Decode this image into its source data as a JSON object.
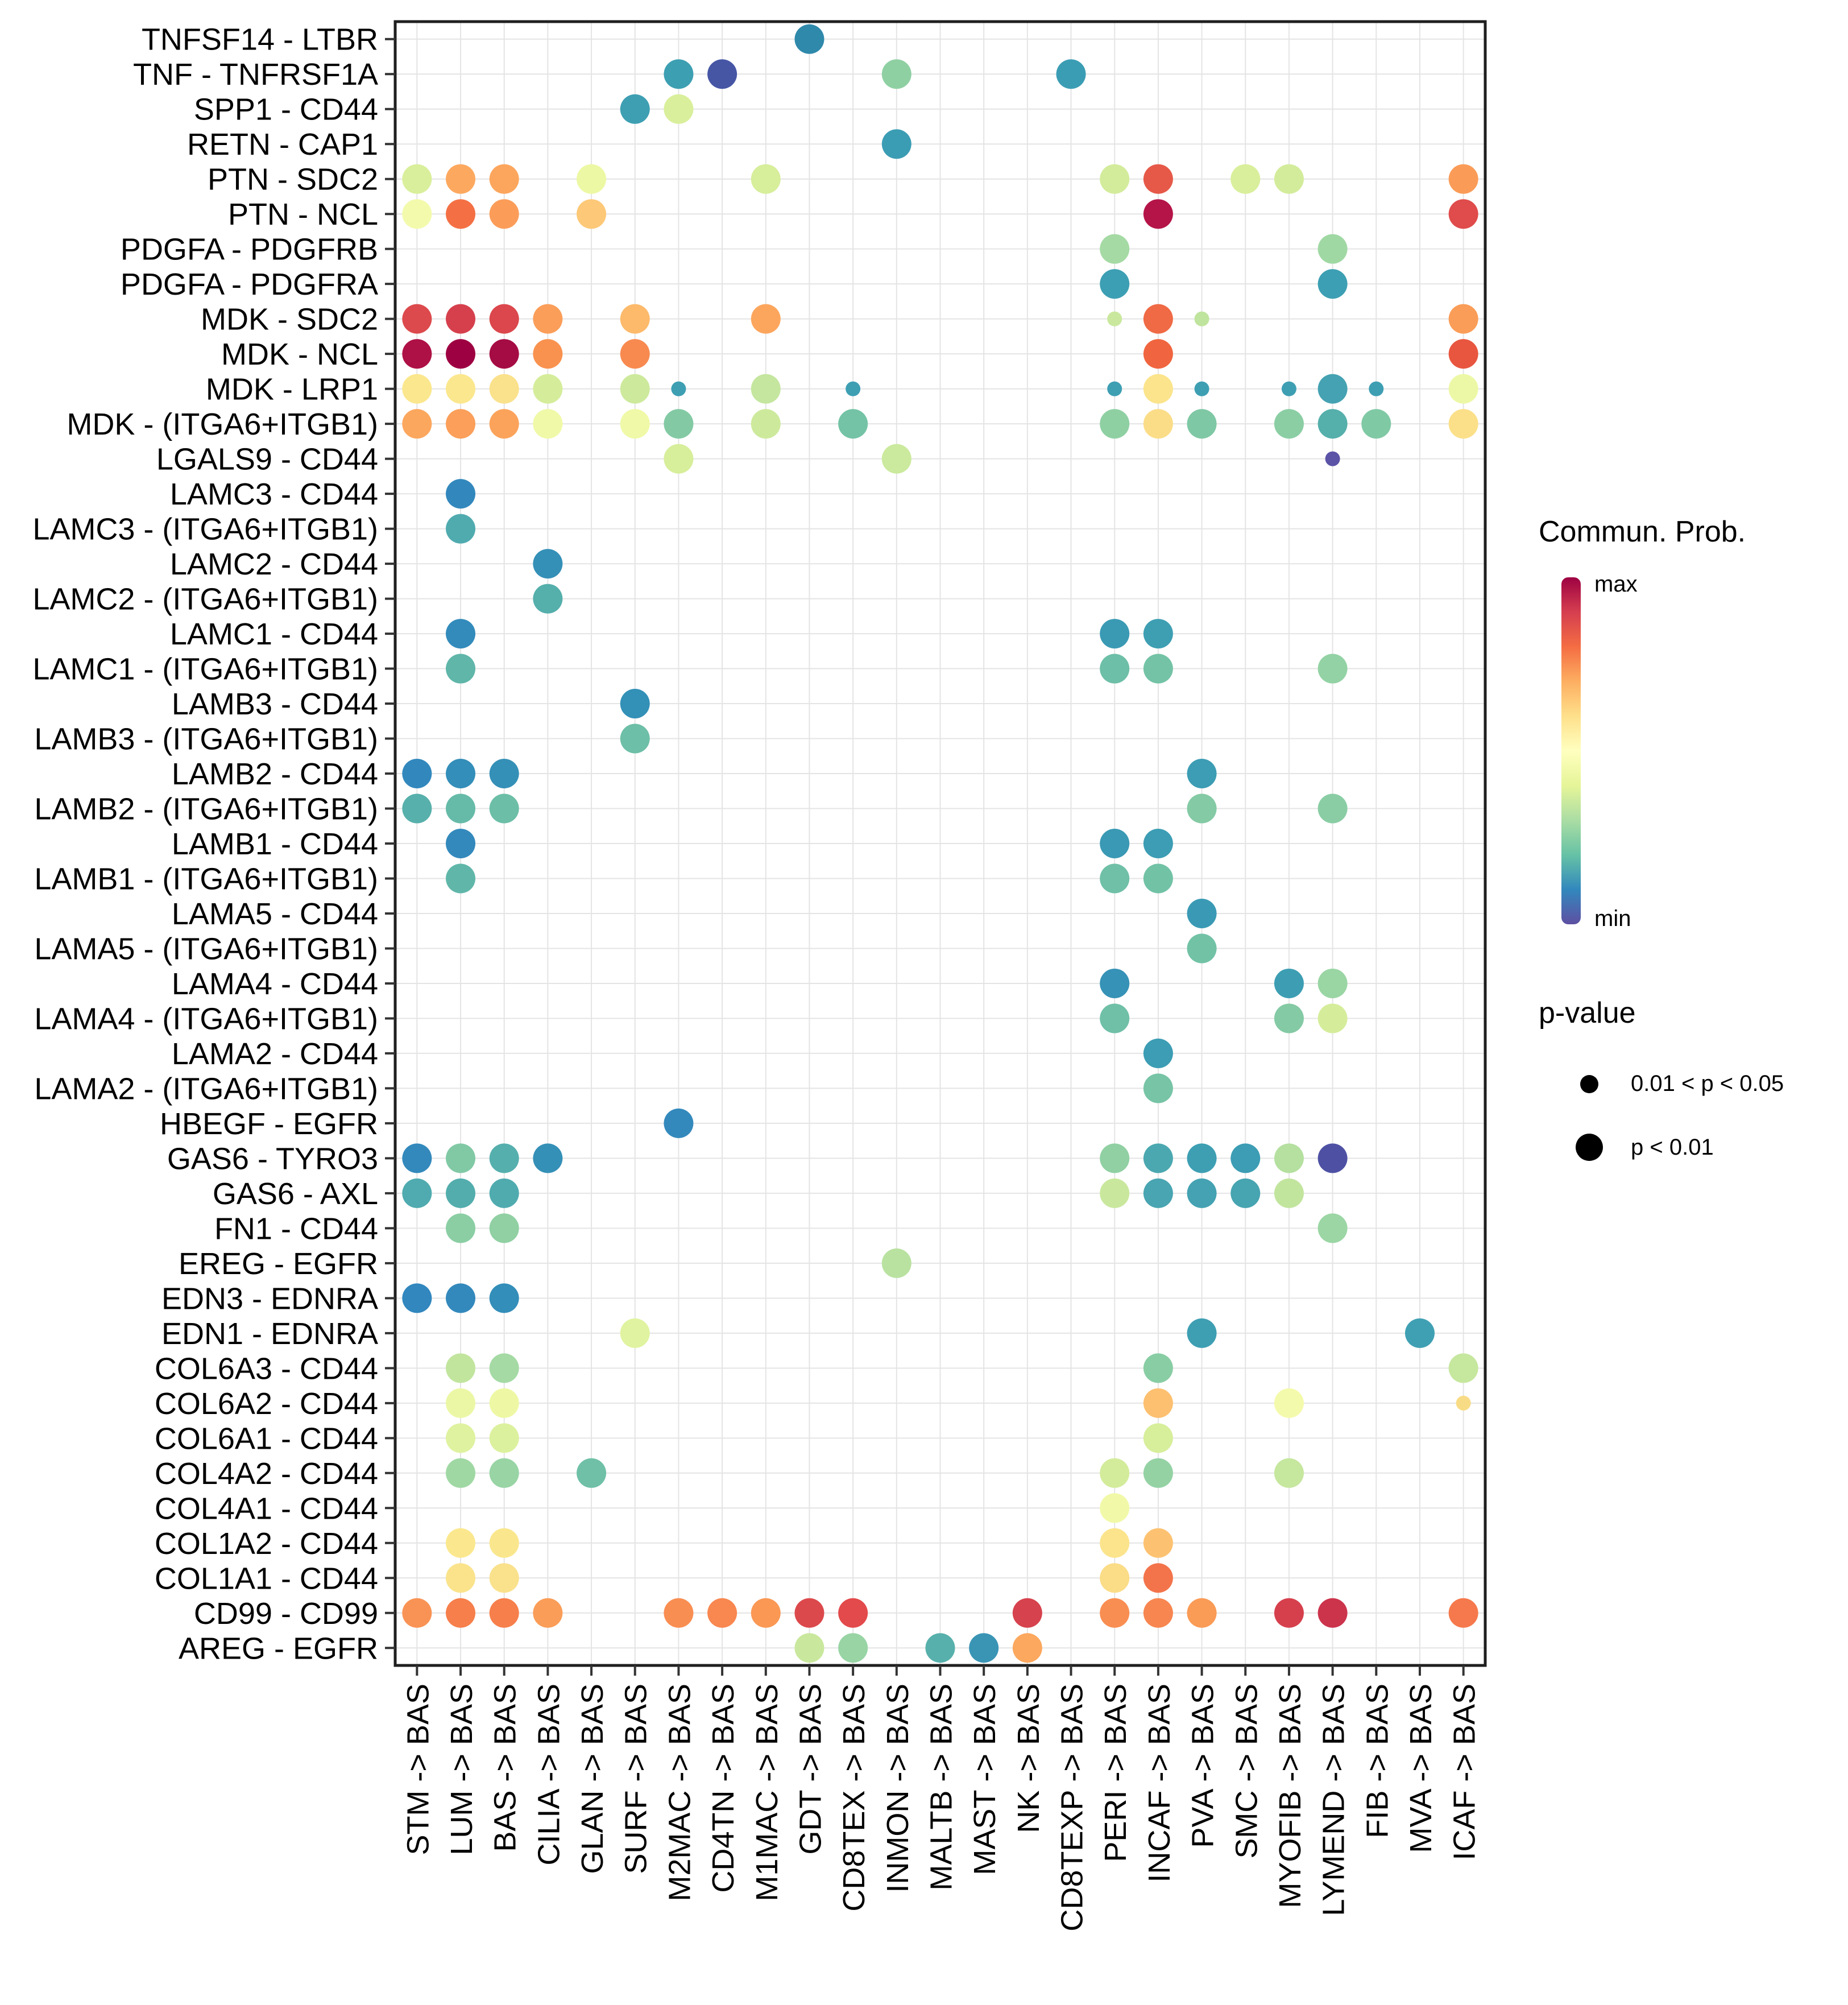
{
  "legend": {
    "colorbar_title": "Commun. Prob.",
    "max_label": "max",
    "min_label": "min",
    "pvalue_title": "p-value",
    "pvalue_items": [
      {
        "label": "0.01 < p < 0.05",
        "size": "small"
      },
      {
        "label": "p < 0.01",
        "size": "large"
      }
    ]
  },
  "chart_data": {
    "type": "scatter",
    "subtype": "ligand-receptor-bubble-dotplot",
    "title": "",
    "xlabel": "",
    "ylabel": "",
    "grid": true,
    "legend_position": "right",
    "color_scale": {
      "label": "Commun. Prob.",
      "max_label": "max",
      "min_label": "min",
      "stops_top_to_bottom": [
        "#9E0142",
        "#D53E4F",
        "#F46D43",
        "#FDAE61",
        "#FEE08B",
        "#FFFFBF",
        "#E6F598",
        "#ABDDA4",
        "#66C2A5",
        "#3288BD",
        "#5E4FA2"
      ]
    },
    "size_scale": {
      "label": "p-value",
      "small": "0.01 < p < 0.05",
      "large": "p < 0.01"
    },
    "rows": [
      "TNFSF14 - LTBR",
      "TNF - TNFRSF1A",
      "SPP1 - CD44",
      "RETN - CAP1",
      "PTN - SDC2",
      "PTN - NCL",
      "PDGFA - PDGFRB",
      "PDGFA - PDGFRA",
      "MDK - SDC2",
      "MDK - NCL",
      "MDK - LRP1",
      "MDK - (ITGA6+ITGB1)",
      "LGALS9 - CD44",
      "LAMC3 - CD44",
      "LAMC3 - (ITGA6+ITGB1)",
      "LAMC2 - CD44",
      "LAMC2 - (ITGA6+ITGB1)",
      "LAMC1 - CD44",
      "LAMC1 - (ITGA6+ITGB1)",
      "LAMB3 - CD44",
      "LAMB3 - (ITGA6+ITGB1)",
      "LAMB2 - CD44",
      "LAMB2 - (ITGA6+ITGB1)",
      "LAMB1 - CD44",
      "LAMB1 - (ITGA6+ITGB1)",
      "LAMA5 - CD44",
      "LAMA5 - (ITGA6+ITGB1)",
      "LAMA4 - CD44",
      "LAMA4 - (ITGA6+ITGB1)",
      "LAMA2 - CD44",
      "LAMA2 - (ITGA6+ITGB1)",
      "HBEGF - EGFR",
      "GAS6 - TYRO3",
      "GAS6 - AXL",
      "FN1 - CD44",
      "EREG - EGFR",
      "EDN3 - EDNRA",
      "EDN1 - EDNRA",
      "COL6A3 - CD44",
      "COL6A2 - CD44",
      "COL6A1 - CD44",
      "COL4A2 - CD44",
      "COL4A1 - CD44",
      "COL1A2 - CD44",
      "COL1A1 - CD44",
      "CD99 - CD99",
      "AREG - EGFR"
    ],
    "columns": [
      "STM -> BAS",
      "LUM -> BAS",
      "BAS -> BAS",
      "CILIA -> BAS",
      "GLAN -> BAS",
      "SURF -> BAS",
      "M2MAC -> BAS",
      "CD4TN -> BAS",
      "M1MAC -> BAS",
      "GDT -> BAS",
      "CD8TEX -> BAS",
      "INMON -> BAS",
      "MALTB -> BAS",
      "MAST -> BAS",
      "NK -> BAS",
      "CD8TEXP -> BAS",
      "PERI -> BAS",
      "INCAF -> BAS",
      "PVA -> BAS",
      "SMC -> BAS",
      "MYOFIB -> BAS",
      "LYMEND -> BAS",
      "FIB -> BAS",
      "MVA -> BAS",
      "ICAF -> BAS"
    ],
    "dot_format": [
      "row_index",
      "col_index",
      "color",
      "size(l=p<0.01, s=0.01<p<0.05)"
    ],
    "dots": [
      [
        0,
        9,
        "#2F89AB",
        "l"
      ],
      [
        1,
        6,
        "#3D9FB2",
        "l"
      ],
      [
        1,
        7,
        "#4656A5",
        "l"
      ],
      [
        1,
        11,
        "#8FD0A3",
        "l"
      ],
      [
        1,
        15,
        "#3B9DB4",
        "l"
      ],
      [
        2,
        5,
        "#3E9FB3",
        "l"
      ],
      [
        2,
        6,
        "#D9EF9B",
        "l"
      ],
      [
        3,
        11,
        "#3B9DB4",
        "l"
      ],
      [
        4,
        0,
        "#D9EF9B",
        "l"
      ],
      [
        4,
        1,
        "#FCA95F",
        "l"
      ],
      [
        4,
        2,
        "#FCA65D",
        "l"
      ],
      [
        4,
        4,
        "#EDF8A4",
        "l"
      ],
      [
        4,
        8,
        "#D7EE9B",
        "l"
      ],
      [
        4,
        16,
        "#D3EC9B",
        "l"
      ],
      [
        4,
        17,
        "#E65948",
        "l"
      ],
      [
        4,
        19,
        "#D9EF9B",
        "l"
      ],
      [
        4,
        20,
        "#D3EC9B",
        "l"
      ],
      [
        4,
        24,
        "#FA9C58",
        "l"
      ],
      [
        5,
        0,
        "#F3FAAC",
        "l"
      ],
      [
        5,
        1,
        "#F47044",
        "l"
      ],
      [
        5,
        2,
        "#FB9D59",
        "l"
      ],
      [
        5,
        4,
        "#FDC877",
        "l"
      ],
      [
        5,
        17,
        "#B51448",
        "l"
      ],
      [
        5,
        24,
        "#E04B4B",
        "l"
      ],
      [
        6,
        16,
        "#A5DAA4",
        "l"
      ],
      [
        6,
        21,
        "#A0D8A4",
        "l"
      ],
      [
        7,
        16,
        "#3D9FB3",
        "l"
      ],
      [
        7,
        21,
        "#3D9FB3",
        "l"
      ],
      [
        8,
        0,
        "#DC4A4D",
        "l"
      ],
      [
        8,
        1,
        "#D6404D",
        "l"
      ],
      [
        8,
        2,
        "#DB474C",
        "l"
      ],
      [
        8,
        3,
        "#FB9E59",
        "l"
      ],
      [
        8,
        5,
        "#FDBA6B",
        "l"
      ],
      [
        8,
        8,
        "#FCA65D",
        "l"
      ],
      [
        8,
        16,
        "#C9E89D",
        "s"
      ],
      [
        8,
        17,
        "#EF6A45",
        "l"
      ],
      [
        8,
        18,
        "#BFE49D",
        "s"
      ],
      [
        8,
        24,
        "#FA9D58",
        "l"
      ],
      [
        9,
        0,
        "#AE1145",
        "l"
      ],
      [
        9,
        1,
        "#9E0142",
        "l"
      ],
      [
        9,
        2,
        "#A50C44",
        "l"
      ],
      [
        9,
        3,
        "#F9924F",
        "l"
      ],
      [
        9,
        5,
        "#F88A50",
        "l"
      ],
      [
        9,
        17,
        "#F0653F",
        "l"
      ],
      [
        9,
        24,
        "#E8563F",
        "l"
      ],
      [
        10,
        0,
        "#FBE78D",
        "l"
      ],
      [
        10,
        1,
        "#FBE78D",
        "l"
      ],
      [
        10,
        2,
        "#FAE18B",
        "l"
      ],
      [
        10,
        3,
        "#D5ED9B",
        "l"
      ],
      [
        10,
        5,
        "#CDEA9C",
        "l"
      ],
      [
        10,
        6,
        "#3E9FB3",
        "s"
      ],
      [
        10,
        8,
        "#C4E69E",
        "l"
      ],
      [
        10,
        10,
        "#3E9FB3",
        "s"
      ],
      [
        10,
        16,
        "#3E9FB3",
        "s"
      ],
      [
        10,
        17,
        "#FBE48C",
        "l"
      ],
      [
        10,
        18,
        "#3E9FB3",
        "s"
      ],
      [
        10,
        20,
        "#3E9FB3",
        "s"
      ],
      [
        10,
        21,
        "#45A2B2",
        "l"
      ],
      [
        10,
        22,
        "#3E9FB3",
        "s"
      ],
      [
        10,
        24,
        "#EDF8A6",
        "l"
      ],
      [
        11,
        0,
        "#FCA75E",
        "l"
      ],
      [
        11,
        1,
        "#FB9F5A",
        "l"
      ],
      [
        11,
        2,
        "#FBA35B",
        "l"
      ],
      [
        11,
        3,
        "#F0F9A7",
        "l"
      ],
      [
        11,
        5,
        "#F0F9A7",
        "l"
      ],
      [
        11,
        6,
        "#83CAA4",
        "l"
      ],
      [
        11,
        8,
        "#CDEA9C",
        "l"
      ],
      [
        11,
        10,
        "#74C3A6",
        "l"
      ],
      [
        11,
        16,
        "#8FD0A3",
        "l"
      ],
      [
        11,
        17,
        "#FBDD88",
        "l"
      ],
      [
        11,
        18,
        "#7FC8A5",
        "l"
      ],
      [
        11,
        20,
        "#8BCEA4",
        "l"
      ],
      [
        11,
        21,
        "#55AFAB",
        "l"
      ],
      [
        11,
        22,
        "#80C9A5",
        "l"
      ],
      [
        11,
        24,
        "#FBE089",
        "l"
      ],
      [
        12,
        6,
        "#D7EE9B",
        "l"
      ],
      [
        12,
        11,
        "#CBEA9D",
        "l"
      ],
      [
        12,
        21,
        "#5B53A6",
        "s"
      ],
      [
        13,
        1,
        "#3288BD",
        "l"
      ],
      [
        14,
        1,
        "#50ABAF",
        "l"
      ],
      [
        15,
        3,
        "#3590B7",
        "l"
      ],
      [
        16,
        3,
        "#55AFAB",
        "l"
      ],
      [
        17,
        1,
        "#338BBB",
        "l"
      ],
      [
        17,
        16,
        "#3A9AB4",
        "l"
      ],
      [
        17,
        17,
        "#3E9FB3",
        "l"
      ],
      [
        18,
        1,
        "#5FB6A9",
        "l"
      ],
      [
        18,
        16,
        "#6DBFA7",
        "l"
      ],
      [
        18,
        17,
        "#74C3A6",
        "l"
      ],
      [
        18,
        21,
        "#93D2A4",
        "l"
      ],
      [
        19,
        5,
        "#3390B7",
        "l"
      ],
      [
        20,
        5,
        "#6DBFA7",
        "l"
      ],
      [
        21,
        0,
        "#3288BD",
        "l"
      ],
      [
        21,
        1,
        "#338EB9",
        "l"
      ],
      [
        21,
        2,
        "#3590B7",
        "l"
      ],
      [
        21,
        18,
        "#3C9DB4",
        "l"
      ],
      [
        22,
        0,
        "#57B0AB",
        "l"
      ],
      [
        22,
        1,
        "#66BBA8",
        "l"
      ],
      [
        22,
        2,
        "#6CBEA7",
        "l"
      ],
      [
        22,
        18,
        "#84CAA4",
        "l"
      ],
      [
        22,
        21,
        "#8ACDA4",
        "l"
      ],
      [
        23,
        1,
        "#3389BC",
        "l"
      ],
      [
        23,
        16,
        "#3A99B4",
        "l"
      ],
      [
        23,
        17,
        "#3C9DB4",
        "l"
      ],
      [
        24,
        1,
        "#60B7A9",
        "l"
      ],
      [
        24,
        16,
        "#6FC0A7",
        "l"
      ],
      [
        24,
        17,
        "#72C2A6",
        "l"
      ],
      [
        25,
        18,
        "#3A9AB5",
        "l"
      ],
      [
        26,
        18,
        "#72C2A6",
        "l"
      ],
      [
        27,
        16,
        "#3692B6",
        "l"
      ],
      [
        27,
        20,
        "#3D9EB3",
        "l"
      ],
      [
        27,
        21,
        "#9AD5A4",
        "l"
      ],
      [
        28,
        16,
        "#6FC0A7",
        "l"
      ],
      [
        28,
        20,
        "#84CAA4",
        "l"
      ],
      [
        28,
        21,
        "#D5ED9B",
        "l"
      ],
      [
        29,
        17,
        "#3C9DB4",
        "l"
      ],
      [
        30,
        17,
        "#77C4A6",
        "l"
      ],
      [
        31,
        6,
        "#3389BC",
        "l"
      ],
      [
        32,
        0,
        "#3389BC",
        "l"
      ],
      [
        32,
        1,
        "#81C9A5",
        "l"
      ],
      [
        32,
        2,
        "#55AFAD",
        "l"
      ],
      [
        32,
        3,
        "#3590B7",
        "l"
      ],
      [
        32,
        16,
        "#90D0A3",
        "l"
      ],
      [
        32,
        17,
        "#4BA8B0",
        "l"
      ],
      [
        32,
        18,
        "#3E9FB3",
        "l"
      ],
      [
        32,
        19,
        "#3C9DB4",
        "l"
      ],
      [
        32,
        20,
        "#B5E0A0",
        "l"
      ],
      [
        32,
        21,
        "#4E51A3",
        "l"
      ],
      [
        33,
        0,
        "#4FABAF",
        "l"
      ],
      [
        33,
        1,
        "#53ADAD",
        "l"
      ],
      [
        33,
        2,
        "#50ABAF",
        "l"
      ],
      [
        33,
        16,
        "#C9E89D",
        "l"
      ],
      [
        33,
        17,
        "#48A5B1",
        "l"
      ],
      [
        33,
        18,
        "#44A2B2",
        "l"
      ],
      [
        33,
        19,
        "#47A4B1",
        "l"
      ],
      [
        33,
        20,
        "#C2E59E",
        "l"
      ],
      [
        34,
        1,
        "#8BCEA4",
        "l"
      ],
      [
        34,
        2,
        "#90D0A3",
        "l"
      ],
      [
        34,
        21,
        "#9BD6A4",
        "l"
      ],
      [
        35,
        11,
        "#B9E2A0",
        "l"
      ],
      [
        36,
        0,
        "#3187BE",
        "l"
      ],
      [
        36,
        1,
        "#3389BC",
        "l"
      ],
      [
        36,
        2,
        "#338EB9",
        "l"
      ],
      [
        37,
        5,
        "#E0F3A0",
        "l"
      ],
      [
        37,
        18,
        "#3E9FB3",
        "l"
      ],
      [
        37,
        23,
        "#40A0B3",
        "l"
      ],
      [
        38,
        1,
        "#C2E59E",
        "l"
      ],
      [
        38,
        2,
        "#A5DAA4",
        "l"
      ],
      [
        38,
        17,
        "#89CDA4",
        "l"
      ],
      [
        38,
        24,
        "#C6E79E",
        "l"
      ],
      [
        39,
        1,
        "#ECF7A5",
        "l"
      ],
      [
        39,
        2,
        "#EEF8A4",
        "l"
      ],
      [
        39,
        17,
        "#FDC070",
        "l"
      ],
      [
        39,
        20,
        "#F4FAAB",
        "l"
      ],
      [
        39,
        24,
        "#F8DC85",
        "s"
      ],
      [
        40,
        1,
        "#DFF2A0",
        "l"
      ],
      [
        40,
        2,
        "#DCF19E",
        "l"
      ],
      [
        40,
        17,
        "#D7EE9B",
        "l"
      ],
      [
        41,
        1,
        "#A0D8A4",
        "l"
      ],
      [
        41,
        2,
        "#98D4A4",
        "l"
      ],
      [
        41,
        4,
        "#6FC0A7",
        "l"
      ],
      [
        41,
        16,
        "#D3EC9B",
        "l"
      ],
      [
        41,
        17,
        "#94D2A4",
        "l"
      ],
      [
        41,
        20,
        "#C6E79E",
        "l"
      ],
      [
        42,
        16,
        "#F1F9A8",
        "l"
      ],
      [
        43,
        1,
        "#FBE88E",
        "l"
      ],
      [
        43,
        2,
        "#FAE78D",
        "l"
      ],
      [
        43,
        16,
        "#FBE48C",
        "l"
      ],
      [
        43,
        17,
        "#FDC271",
        "l"
      ],
      [
        44,
        1,
        "#FAE38B",
        "l"
      ],
      [
        44,
        2,
        "#FAE18B",
        "l"
      ],
      [
        44,
        16,
        "#FBDC87",
        "l"
      ],
      [
        44,
        17,
        "#F3744B",
        "l"
      ],
      [
        45,
        0,
        "#F99355",
        "l"
      ],
      [
        45,
        1,
        "#F67F4B",
        "l"
      ],
      [
        45,
        2,
        "#F67F4B",
        "l"
      ],
      [
        45,
        3,
        "#FA9D58",
        "l"
      ],
      [
        45,
        6,
        "#F98E52",
        "l"
      ],
      [
        45,
        7,
        "#F88750",
        "l"
      ],
      [
        45,
        8,
        "#FA9854",
        "l"
      ],
      [
        45,
        9,
        "#DC494C",
        "l"
      ],
      [
        45,
        10,
        "#E34A4B",
        "l"
      ],
      [
        45,
        14,
        "#D6424D",
        "l"
      ],
      [
        45,
        16,
        "#F98E52",
        "l"
      ],
      [
        45,
        17,
        "#F88650",
        "l"
      ],
      [
        45,
        18,
        "#FA9B56",
        "l"
      ],
      [
        45,
        20,
        "#D6404D",
        "l"
      ],
      [
        45,
        21,
        "#CC344C",
        "l"
      ],
      [
        45,
        24,
        "#F5794C",
        "l"
      ],
      [
        46,
        9,
        "#C9E89D",
        "l"
      ],
      [
        46,
        10,
        "#98D4A4",
        "l"
      ],
      [
        46,
        12,
        "#57B0AB",
        "l"
      ],
      [
        46,
        13,
        "#3A95B5",
        "l"
      ],
      [
        46,
        14,
        "#FCA85E",
        "l"
      ]
    ]
  }
}
